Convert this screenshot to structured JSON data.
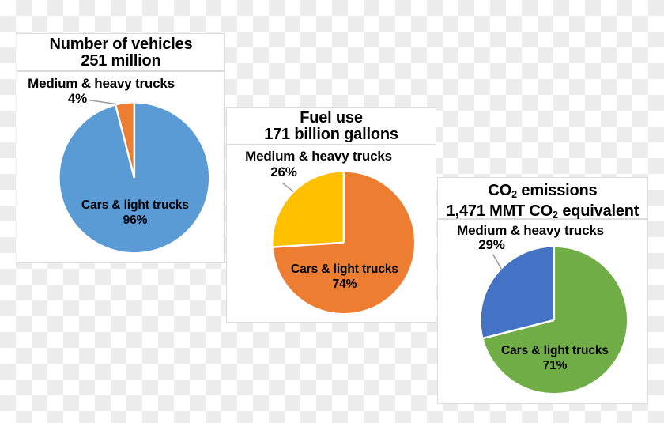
{
  "page": {
    "checker_color": "#ececec",
    "panel_bg": "#ffffff",
    "panel_border": "#dcdcdc",
    "leader_line_color": "#9e9e9e",
    "text_color": "#000000"
  },
  "cards": [
    {
      "title": {
        "line1": "Number of vehicles",
        "line2": "251 million"
      },
      "callout": {
        "label": "Medium & heavy trucks",
        "percent": "4%"
      },
      "inner": {
        "label": "Cars & light trucks",
        "percent": "96%"
      }
    },
    {
      "title": {
        "line1": "Fuel use",
        "line2": "171 billion gallons"
      },
      "callout": {
        "label": "Medium & heavy trucks",
        "percent": "26%"
      },
      "inner": {
        "label": "Cars & light trucks",
        "percent": "74%"
      }
    },
    {
      "title": {
        "line1_pre": "CO",
        "line1_sub": "2",
        "line1_post": " emissions",
        "line2_pre": "1,471 MMT CO",
        "line2_sub": "2",
        "line2_post": " equivalent"
      },
      "callout": {
        "label": "Medium & heavy trucks",
        "percent": "29%"
      },
      "inner": {
        "label": "Cars & light trucks",
        "percent": "71%"
      }
    }
  ],
  "chart_data": [
    {
      "type": "pie",
      "title": "Number of vehicles",
      "subtitle": "251 million",
      "slices": [
        {
          "label": "Cars & light trucks",
          "percent": 96,
          "color": "#5B9BD5"
        },
        {
          "label": "Medium & heavy trucks",
          "percent": 4,
          "color": "#ED7D31"
        }
      ],
      "legend": "none",
      "data_labels": "inside major slice + callout for minor slice"
    },
    {
      "type": "pie",
      "title": "Fuel use",
      "subtitle": "171 billion gallons",
      "slices": [
        {
          "label": "Cars & light trucks",
          "percent": 74,
          "color": "#ED7D31"
        },
        {
          "label": "Medium & heavy trucks",
          "percent": 26,
          "color": "#FFC000"
        }
      ],
      "legend": "none",
      "data_labels": "inside major slice + callout for minor slice"
    },
    {
      "type": "pie",
      "title": "CO2 emissions",
      "subtitle": "1,471 MMT CO2 equivalent",
      "slices": [
        {
          "label": "Cars & light trucks",
          "percent": 71,
          "color": "#70AD47"
        },
        {
          "label": "Medium & heavy trucks",
          "percent": 29,
          "color": "#4472C4"
        }
      ],
      "legend": "none",
      "data_labels": "inside major slice + callout for minor slice"
    }
  ]
}
